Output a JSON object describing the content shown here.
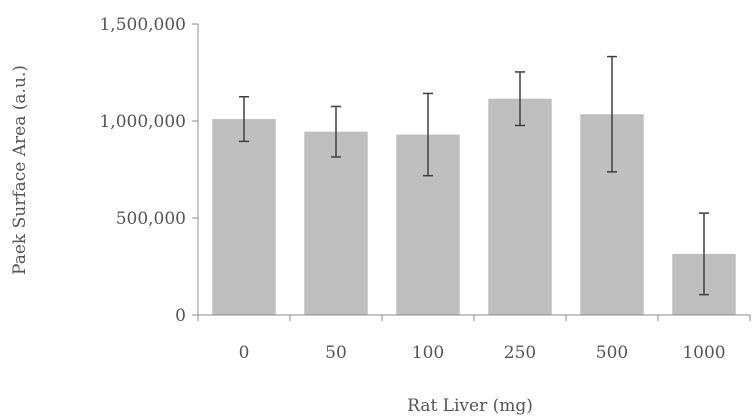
{
  "chart_data": {
    "type": "bar",
    "title": "",
    "xlabel": "Rat Liver (mg)",
    "ylabel": "Paek Surface Area (a.u.)",
    "categories": [
      "0",
      "50",
      "100",
      "250",
      "500",
      "1000"
    ],
    "series": [
      {
        "values": [
          1010000,
          945000,
          930000,
          1115000,
          1035000,
          315000
        ],
        "error": [
          115000,
          130000,
          212000,
          138000,
          297000,
          210000
        ]
      }
    ],
    "ylim": [
      0,
      1500000
    ],
    "yticks": [
      0,
      500000,
      1000000,
      1500000
    ],
    "ytick_labels": [
      "0",
      "500,000",
      "1,000,000",
      "1,500,000"
    ],
    "grid": false,
    "legend": "none",
    "colors": {
      "bar": "#bfbfbf",
      "error_bar": "#404040",
      "axis": "#8c8c8c",
      "text": "#555555"
    }
  }
}
